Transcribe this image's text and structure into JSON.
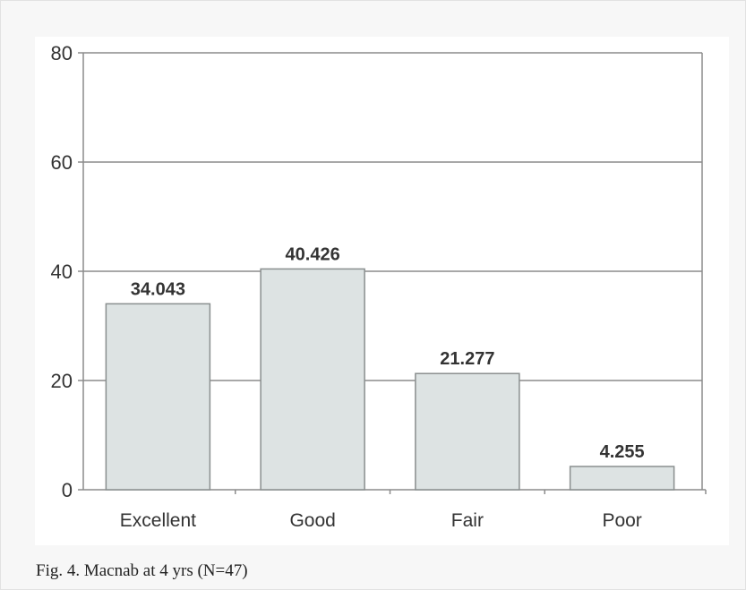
{
  "chart_data": {
    "type": "bar",
    "categories": [
      "Excellent",
      "Good",
      "Fair",
      "Poor"
    ],
    "values": [
      34.043,
      40.426,
      21.277,
      4.255
    ],
    "data_labels": [
      "34.043",
      "40.426",
      "21.277",
      "4.255"
    ],
    "yticks": [
      0,
      20,
      40,
      60,
      80
    ],
    "ylim": [
      0,
      80
    ],
    "grid": true,
    "colors": {
      "bar_fill": "#dde3e3",
      "bar_stroke": "#8a8f8f",
      "grid": "#8c8c8c",
      "axis": "#8c8c8c"
    }
  },
  "caption": "Fig. 4. Macnab at 4 yrs (N=47)"
}
